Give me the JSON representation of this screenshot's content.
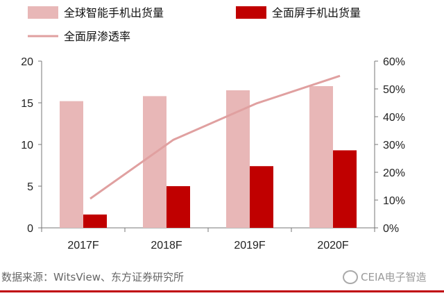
{
  "chart_data": {
    "type": "bar",
    "categories": [
      "2017F",
      "2018F",
      "2019F",
      "2020F"
    ],
    "series": [
      {
        "name": "全球智能手机出货量",
        "kind": "bar",
        "axis": "left",
        "color": "#e8b7b7",
        "values": [
          15.2,
          15.8,
          16.5,
          17.0
        ]
      },
      {
        "name": "全面屏手机出货量",
        "kind": "bar",
        "axis": "left",
        "color": "#c00000",
        "values": [
          1.6,
          5.0,
          7.4,
          9.3
        ]
      },
      {
        "name": "全面屏渗透率",
        "kind": "line",
        "axis": "right",
        "color": "#e0a0a0",
        "values": [
          0.105,
          0.317,
          0.448,
          0.547
        ]
      }
    ],
    "y_left": {
      "ylim": [
        0,
        20
      ],
      "ticks": [
        "0",
        "5",
        "10",
        "15",
        "20"
      ]
    },
    "y_right": {
      "ylim": [
        0,
        0.6
      ],
      "ticks": [
        "0%",
        "10%",
        "20%",
        "30%",
        "40%",
        "50%",
        "60%"
      ]
    },
    "legend": "top",
    "grid": false
  },
  "source_text": "数据来源：WitsView、东方证券研究所",
  "watermark_text": "CEIA电子智造"
}
